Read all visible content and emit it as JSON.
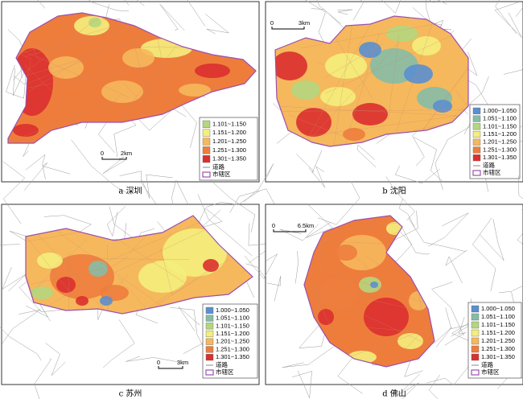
{
  "panels": [
    {
      "caption": "a 深圳",
      "scale": [
        "0",
        "2km"
      ],
      "legend": {
        "items": [
          {
            "label": "1.101~1.150",
            "color": "#b5d67e"
          },
          {
            "label": "1.151~1.200",
            "color": "#f4ee7c"
          },
          {
            "label": "1.201~1.250",
            "color": "#f6b85c"
          },
          {
            "label": "1.251~1.300",
            "color": "#ee7d3c"
          },
          {
            "label": "1.301~1.350",
            "color": "#dc2f2f"
          }
        ],
        "road": "道路",
        "district": "市辖区"
      }
    },
    {
      "caption": "b 沈阳",
      "scale": [
        "0",
        "3km"
      ],
      "legend": {
        "items": [
          {
            "label": "1.000~1.050",
            "color": "#5a8fd0"
          },
          {
            "label": "1.051~1.100",
            "color": "#86bca6"
          },
          {
            "label": "1.101~1.150",
            "color": "#b5d67e"
          },
          {
            "label": "1.151~1.200",
            "color": "#f4ee7c"
          },
          {
            "label": "1.201~1.250",
            "color": "#f6b85c"
          },
          {
            "label": "1.251~1.300",
            "color": "#ee7d3c"
          },
          {
            "label": "1.301~1.350",
            "color": "#dc2f2f"
          }
        ],
        "road": "道路",
        "district": "市辖区"
      }
    },
    {
      "caption": "c 苏州",
      "scale": [
        "0",
        "3km"
      ],
      "legend": {
        "items": [
          {
            "label": "1.000~1.050",
            "color": "#5a8fd0"
          },
          {
            "label": "1.051~1.100",
            "color": "#86bca6"
          },
          {
            "label": "1.101~1.150",
            "color": "#b5d67e"
          },
          {
            "label": "1.151~1.200",
            "color": "#f4ee7c"
          },
          {
            "label": "1.201~1.250",
            "color": "#f6b85c"
          },
          {
            "label": "1.251~1.300",
            "color": "#ee7d3c"
          },
          {
            "label": "1.301~1.350",
            "color": "#dc2f2f"
          }
        ],
        "road": "道路",
        "district": "市辖区"
      }
    },
    {
      "caption": "d 佛山",
      "scale": [
        "0",
        "6.5km"
      ],
      "legend": {
        "items": [
          {
            "label": "1.000~1.050",
            "color": "#5a8fd0"
          },
          {
            "label": "1.051~1.100",
            "color": "#86bca6"
          },
          {
            "label": "1.101~1.150",
            "color": "#b5d67e"
          },
          {
            "label": "1.151~1.200",
            "color": "#f4ee7c"
          },
          {
            "label": "1.201~1.250",
            "color": "#f6b85c"
          },
          {
            "label": "1.251~1.300",
            "color": "#ee7d3c"
          },
          {
            "label": "1.301~1.350",
            "color": "#dc2f2f"
          }
        ],
        "road": "道路",
        "district": "市辖区"
      }
    }
  ]
}
